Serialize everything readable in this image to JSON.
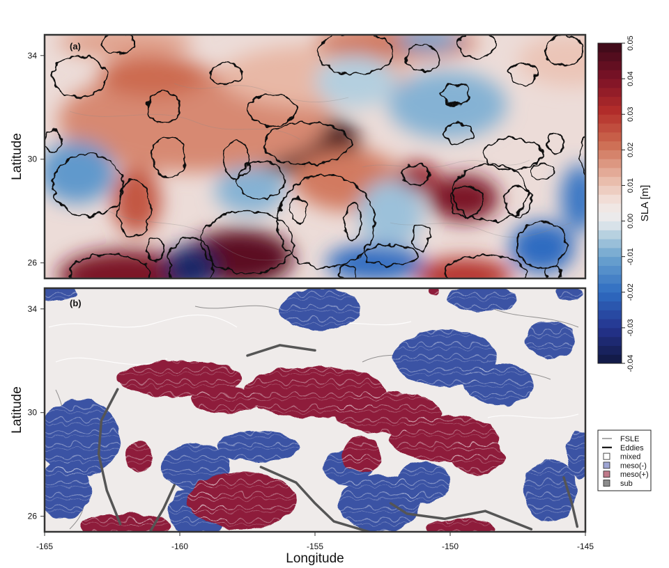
{
  "chart_data": [
    {
      "type": "heatmap",
      "panel_label": "(a)",
      "xlim": [
        -165,
        -145
      ],
      "ylim": [
        25.4,
        34.8
      ],
      "ylabel": "Latitude",
      "yticks": [
        26,
        30,
        34
      ],
      "colorbar": {
        "label": "SLA [m]",
        "range": [
          -0.04,
          0.05
        ],
        "ticks": [
          -0.04,
          -0.03,
          -0.02,
          -0.01,
          0.0,
          0.01,
          0.02,
          0.03,
          0.04,
          0.05
        ],
        "tick_labels": [
          "-0.04",
          "-0.03",
          "-0.02",
          "-0.01",
          "0.00",
          "0.01",
          "0.02",
          "0.03",
          "0.04",
          "0.05"
        ]
      },
      "field_blobs": [
        {
          "x": -155.5,
          "y": 30.6,
          "rx": 2.2,
          "ry": 1.2,
          "sla": 0.05
        },
        {
          "x": -157.8,
          "y": 26.2,
          "rx": 2.0,
          "ry": 1.1,
          "sla": 0.045
        },
        {
          "x": -149.5,
          "y": 28.5,
          "rx": 1.3,
          "ry": 0.9,
          "sla": 0.04
        },
        {
          "x": -151.2,
          "y": 29.3,
          "rx": 0.8,
          "ry": 0.6,
          "sla": 0.035
        },
        {
          "x": -153.8,
          "y": 29.2,
          "rx": 2.0,
          "ry": 1.2,
          "sla": 0.02
        },
        {
          "x": -159.5,
          "y": 31.5,
          "rx": 5.0,
          "ry": 2.0,
          "sla": 0.018
        },
        {
          "x": -161.6,
          "y": 28.4,
          "rx": 0.9,
          "ry": 1.3,
          "sla": 0.025
        },
        {
          "x": -162.0,
          "y": 25.5,
          "rx": 2.5,
          "ry": 1.0,
          "sla": 0.04
        },
        {
          "x": -149.5,
          "y": 25.5,
          "rx": 1.8,
          "ry": 0.7,
          "sla": 0.03
        },
        {
          "x": -155.0,
          "y": 33.2,
          "rx": 3.5,
          "ry": 1.2,
          "sla": 0.012
        },
        {
          "x": -152.0,
          "y": 34.5,
          "rx": 3.0,
          "ry": 0.7,
          "sla": 0.02
        },
        {
          "x": -162.0,
          "y": 34.5,
          "rx": 2.5,
          "ry": 0.6,
          "sla": 0.015
        },
        {
          "x": -145.5,
          "y": 33.8,
          "rx": 2.0,
          "ry": 1.0,
          "sla": 0.01
        },
        {
          "x": -163.8,
          "y": 29.5,
          "rx": 1.4,
          "ry": 1.2,
          "sla": -0.012
        },
        {
          "x": -159.6,
          "y": 25.8,
          "rx": 1.0,
          "ry": 0.9,
          "sla": -0.035
        },
        {
          "x": -152.8,
          "y": 26.0,
          "rx": 1.8,
          "ry": 0.7,
          "sla": -0.02
        },
        {
          "x": -146.6,
          "y": 26.6,
          "rx": 1.2,
          "ry": 1.0,
          "sla": -0.02
        },
        {
          "x": -145.2,
          "y": 28.5,
          "rx": 0.7,
          "ry": 1.3,
          "sla": -0.018
        },
        {
          "x": -157.4,
          "y": 28.8,
          "rx": 1.3,
          "ry": 0.9,
          "sla": -0.008
        },
        {
          "x": -152.2,
          "y": 27.9,
          "rx": 1.2,
          "ry": 1.3,
          "sla": -0.006
        },
        {
          "x": -150.1,
          "y": 32.1,
          "rx": 2.2,
          "ry": 1.3,
          "sla": -0.008
        },
        {
          "x": -153.5,
          "y": 33.0,
          "rx": 1.5,
          "ry": 1.0,
          "sla": -0.004
        },
        {
          "x": -150.8,
          "y": 34.6,
          "rx": 1.2,
          "ry": 0.4,
          "sla": -0.01
        },
        {
          "x": -161.0,
          "y": 33.2,
          "rx": 2.0,
          "ry": 0.8,
          "sla": 0.022
        }
      ],
      "eddy_contours": [
        {
          "x": -157.5,
          "y": 26.8,
          "rx": 1.7,
          "ry": 1.2
        },
        {
          "x": -155.3,
          "y": 30.6,
          "rx": 1.6,
          "ry": 0.8
        },
        {
          "x": -148.5,
          "y": 28.7,
          "rx": 1.4,
          "ry": 1.1
        },
        {
          "x": -151.3,
          "y": 29.4,
          "rx": 0.5,
          "ry": 0.4
        },
        {
          "x": -149.4,
          "y": 28.4,
          "rx": 0.6,
          "ry": 0.6
        },
        {
          "x": -154.6,
          "y": 27.6,
          "rx": 1.8,
          "ry": 1.8
        },
        {
          "x": -156.6,
          "y": 31.9,
          "rx": 0.9,
          "ry": 0.6
        },
        {
          "x": -157.0,
          "y": 29.2,
          "rx": 0.9,
          "ry": 0.7
        },
        {
          "x": -161.7,
          "y": 28.1,
          "rx": 0.6,
          "ry": 1.1
        },
        {
          "x": -163.4,
          "y": 29.0,
          "rx": 1.3,
          "ry": 1.2
        },
        {
          "x": -163.7,
          "y": 33.2,
          "rx": 1.0,
          "ry": 0.8
        },
        {
          "x": -162.3,
          "y": 34.5,
          "rx": 0.6,
          "ry": 0.4
        },
        {
          "x": -160.6,
          "y": 32.0,
          "rx": 0.6,
          "ry": 0.6
        },
        {
          "x": -158.3,
          "y": 33.3,
          "rx": 0.6,
          "ry": 0.4
        },
        {
          "x": -157.9,
          "y": 30.0,
          "rx": 0.5,
          "ry": 0.7
        },
        {
          "x": -164.7,
          "y": 30.7,
          "rx": 0.3,
          "ry": 0.4
        },
        {
          "x": -160.4,
          "y": 30.1,
          "rx": 0.6,
          "ry": 0.8
        },
        {
          "x": -153.5,
          "y": 34.1,
          "rx": 1.4,
          "ry": 0.8
        },
        {
          "x": -151.0,
          "y": 33.9,
          "rx": 0.6,
          "ry": 0.5
        },
        {
          "x": -149.0,
          "y": 34.4,
          "rx": 0.7,
          "ry": 0.5
        },
        {
          "x": -145.8,
          "y": 34.2,
          "rx": 0.7,
          "ry": 0.6
        },
        {
          "x": -147.3,
          "y": 33.3,
          "rx": 0.5,
          "ry": 0.4
        },
        {
          "x": -149.8,
          "y": 32.5,
          "rx": 0.5,
          "ry": 0.4
        },
        {
          "x": -149.7,
          "y": 31.0,
          "rx": 0.5,
          "ry": 0.4
        },
        {
          "x": -146.1,
          "y": 30.6,
          "rx": 0.3,
          "ry": 0.4
        },
        {
          "x": -147.7,
          "y": 30.2,
          "rx": 1.1,
          "ry": 0.6
        },
        {
          "x": -146.6,
          "y": 29.5,
          "rx": 0.4,
          "ry": 0.3
        },
        {
          "x": -147.5,
          "y": 28.4,
          "rx": 0.5,
          "ry": 0.6
        },
        {
          "x": -146.6,
          "y": 26.7,
          "rx": 0.9,
          "ry": 0.9
        },
        {
          "x": -152.2,
          "y": 26.3,
          "rx": 1.0,
          "ry": 0.4
        },
        {
          "x": -153.6,
          "y": 27.6,
          "rx": 0.3,
          "ry": 0.7
        },
        {
          "x": -151.1,
          "y": 27.0,
          "rx": 0.3,
          "ry": 0.5
        },
        {
          "x": -155.6,
          "y": 28.0,
          "rx": 0.3,
          "ry": 0.5
        },
        {
          "x": -153.8,
          "y": 25.6,
          "rx": 0.3,
          "ry": 0.3
        },
        {
          "x": -162.6,
          "y": 25.6,
          "rx": 1.5,
          "ry": 0.7
        },
        {
          "x": -159.6,
          "y": 25.9,
          "rx": 0.8,
          "ry": 1.1
        },
        {
          "x": -148.7,
          "y": 25.6,
          "rx": 1.5,
          "ry": 0.7
        },
        {
          "x": -146.2,
          "y": 25.6,
          "rx": 0.3,
          "ry": 0.3
        },
        {
          "x": -160.9,
          "y": 26.5,
          "rx": 0.3,
          "ry": 0.4
        },
        {
          "x": -144.8,
          "y": 30.2,
          "rx": 0.4,
          "ry": 0.9
        }
      ]
    },
    {
      "type": "heatmap",
      "panel_label": "(b)",
      "xlim": [
        -165,
        -145
      ],
      "ylim": [
        25.4,
        34.8
      ],
      "xlabel": "Longitude",
      "ylabel": "Latitude",
      "xticks": [
        -165,
        -160,
        -155,
        -150,
        -145
      ],
      "yticks": [
        26,
        30,
        34
      ],
      "legend": {
        "position": "right",
        "entries": [
          {
            "label": "FSLE",
            "symbol": "thin-line",
            "color": "#555555"
          },
          {
            "label": "Eddies",
            "symbol": "thick-line",
            "color": "#111111"
          },
          {
            "label": "mixed",
            "symbol": "box",
            "color": "#ffffff"
          },
          {
            "label": "meso(-)",
            "symbol": "box",
            "color": "#9fa6d3"
          },
          {
            "label": "meso(+)",
            "symbol": "box",
            "color": "#bf7a8a"
          },
          {
            "label": "sub",
            "symbol": "box",
            "color": "#8c8c8c"
          }
        ]
      },
      "categories": [
        "mixed",
        "meso(-)",
        "meso(+)",
        "sub"
      ],
      "region_colors": {
        "meso_neg": "#3a53a4",
        "meso_pos": "#8e1d3a",
        "mixed": "#efebea",
        "sub": "#555555"
      },
      "meso_pos_regions": [
        {
          "x": -155.0,
          "y": 30.8,
          "rx": 2.6,
          "ry": 1.0
        },
        {
          "x": -160.0,
          "y": 31.3,
          "rx": 2.3,
          "ry": 0.7
        },
        {
          "x": -158.3,
          "y": 30.5,
          "rx": 1.3,
          "ry": 0.5
        },
        {
          "x": -152.3,
          "y": 30.0,
          "rx": 2.0,
          "ry": 0.8
        },
        {
          "x": -150.2,
          "y": 29.0,
          "rx": 2.0,
          "ry": 0.9
        },
        {
          "x": -149.0,
          "y": 28.3,
          "rx": 1.0,
          "ry": 0.7
        },
        {
          "x": -153.3,
          "y": 28.4,
          "rx": 0.7,
          "ry": 0.7
        },
        {
          "x": -157.7,
          "y": 26.6,
          "rx": 2.0,
          "ry": 1.1
        },
        {
          "x": -161.5,
          "y": 28.3,
          "rx": 0.5,
          "ry": 0.6
        },
        {
          "x": -162.0,
          "y": 25.6,
          "rx": 1.7,
          "ry": 0.5
        },
        {
          "x": -149.6,
          "y": 25.5,
          "rx": 1.3,
          "ry": 0.4
        },
        {
          "x": -150.6,
          "y": 34.7,
          "rx": 0.2,
          "ry": 0.2
        }
      ],
      "meso_neg_regions": [
        {
          "x": -154.8,
          "y": 34.0,
          "rx": 1.5,
          "ry": 0.8
        },
        {
          "x": -150.2,
          "y": 32.1,
          "rx": 1.9,
          "ry": 1.1
        },
        {
          "x": -148.2,
          "y": 31.1,
          "rx": 1.3,
          "ry": 0.8
        },
        {
          "x": -146.3,
          "y": 32.8,
          "rx": 0.9,
          "ry": 0.7
        },
        {
          "x": -148.8,
          "y": 34.4,
          "rx": 1.3,
          "ry": 0.5
        },
        {
          "x": -145.6,
          "y": 34.6,
          "rx": 0.5,
          "ry": 0.3
        },
        {
          "x": -163.7,
          "y": 29.0,
          "rx": 1.5,
          "ry": 1.5
        },
        {
          "x": -164.3,
          "y": 27.0,
          "rx": 1.0,
          "ry": 1.1
        },
        {
          "x": -159.4,
          "y": 27.9,
          "rx": 1.3,
          "ry": 0.9
        },
        {
          "x": -157.1,
          "y": 28.7,
          "rx": 1.5,
          "ry": 0.6
        },
        {
          "x": -159.3,
          "y": 26.2,
          "rx": 1.1,
          "ry": 1.0
        },
        {
          "x": -152.6,
          "y": 26.5,
          "rx": 1.5,
          "ry": 1.1
        },
        {
          "x": -153.8,
          "y": 27.9,
          "rx": 0.9,
          "ry": 0.7
        },
        {
          "x": -151.0,
          "y": 27.3,
          "rx": 1.0,
          "ry": 0.8
        },
        {
          "x": -146.3,
          "y": 27.0,
          "rx": 1.0,
          "ry": 1.2
        },
        {
          "x": -145.2,
          "y": 28.4,
          "rx": 0.5,
          "ry": 0.9
        },
        {
          "x": -164.5,
          "y": 34.6,
          "rx": 0.7,
          "ry": 0.3
        },
        {
          "x": -161.4,
          "y": 25.7,
          "rx": 0.5,
          "ry": 0.3
        }
      ],
      "sub_paths": [
        [
          [
            -162.3,
            30.9
          ],
          [
            -162.9,
            29.7
          ],
          [
            -163.0,
            28.4
          ],
          [
            -162.7,
            27.0
          ],
          [
            -162.2,
            25.7
          ]
        ],
        [
          [
            -157.0,
            27.9
          ],
          [
            -155.7,
            27.3
          ],
          [
            -155.0,
            26.5
          ],
          [
            -154.3,
            25.8
          ],
          [
            -153.0,
            25.4
          ]
        ],
        [
          [
            -152.2,
            26.5
          ],
          [
            -151.6,
            26.1
          ],
          [
            -150.2,
            25.9
          ],
          [
            -148.7,
            26.2
          ],
          [
            -147.0,
            25.5
          ]
        ],
        [
          [
            -145.8,
            27.5
          ],
          [
            -145.5,
            26.5
          ],
          [
            -145.3,
            25.6
          ]
        ],
        [
          [
            -157.5,
            32.2
          ],
          [
            -156.3,
            32.6
          ],
          [
            -155.0,
            32.4
          ]
        ],
        [
          [
            -160.2,
            27.2
          ],
          [
            -160.6,
            26.3
          ],
          [
            -161.1,
            25.4
          ]
        ]
      ]
    }
  ]
}
